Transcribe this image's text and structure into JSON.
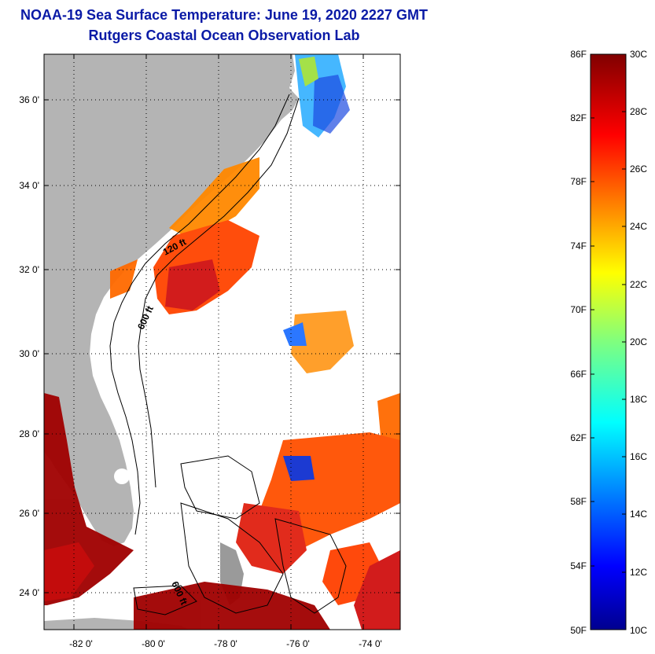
{
  "header": {
    "title": "NOAA-19 Sea Surface Temperature:  June 19, 2020 2227 GMT",
    "subtitle": "Rutgers Coastal Ocean Observation Lab"
  },
  "map": {
    "lat_labels": [
      "36 0'",
      "34 0'",
      "32 0'",
      "30 0'",
      "28 0'",
      "26 0'",
      "24 0'"
    ],
    "lon_labels": [
      "-82 0'",
      "-80 0'",
      "-78 0'",
      "-76 0'",
      "-74 0'"
    ],
    "contour_labels": [
      "120 ft",
      "600 ft",
      "600 ft"
    ],
    "land_color": "#b4b4b4",
    "water_no_data_color": "#ffffff"
  },
  "colorbar": {
    "f_labels": [
      "86F",
      "82F",
      "78F",
      "74F",
      "70F",
      "66F",
      "62F",
      "58F",
      "54F",
      "50F"
    ],
    "c_labels": [
      "30C",
      "28C",
      "26C",
      "24C",
      "22C",
      "20C",
      "18C",
      "16C",
      "14C",
      "12C",
      "10C"
    ],
    "colormap": "jet",
    "min_c": 10,
    "max_c": 30
  }
}
